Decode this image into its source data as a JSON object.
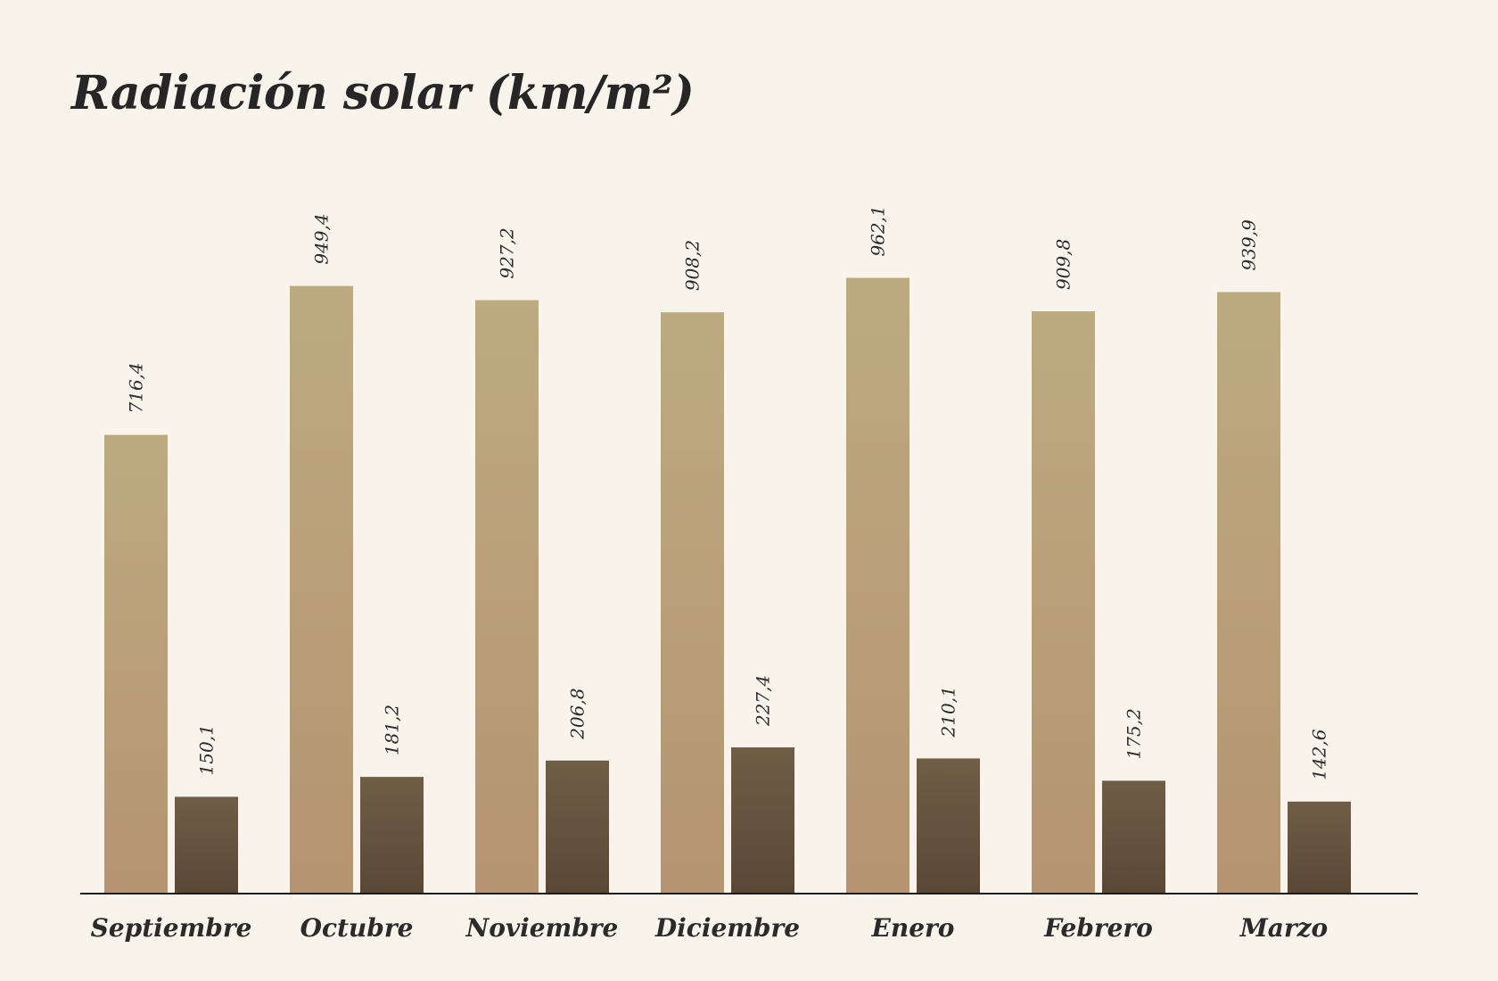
{
  "chart_data": {
    "type": "bar",
    "title": "Radiación solar (km/m²)",
    "xlabel": "",
    "ylabel": "",
    "categories": [
      "Septiembre",
      "Octubre",
      "Noviembre",
      "Diciembre",
      "Enero",
      "Febrero",
      "Marzo"
    ],
    "series": [
      {
        "values": [
          716.4,
          949.4,
          927.2,
          908.2,
          962.1,
          909.8,
          939.9
        ],
        "labels": [
          "716,4",
          "949,4",
          "927,2",
          "908,2",
          "962,1",
          "909,8",
          "939,9"
        ],
        "color_top": "#bdab80",
        "color_bottom": "#b59373"
      },
      {
        "values": [
          150.1,
          181.2,
          206.8,
          227.4,
          210.1,
          175.2,
          142.6
        ],
        "labels": [
          "150,1",
          "181,2",
          "206,8",
          "227,4",
          "210,1",
          "175,2",
          "142,6"
        ],
        "color_top": "#6e5e46",
        "color_bottom": "#5a4837"
      }
    ],
    "ylim": [
      0,
      1000
    ],
    "grid": false,
    "legend": "none"
  }
}
